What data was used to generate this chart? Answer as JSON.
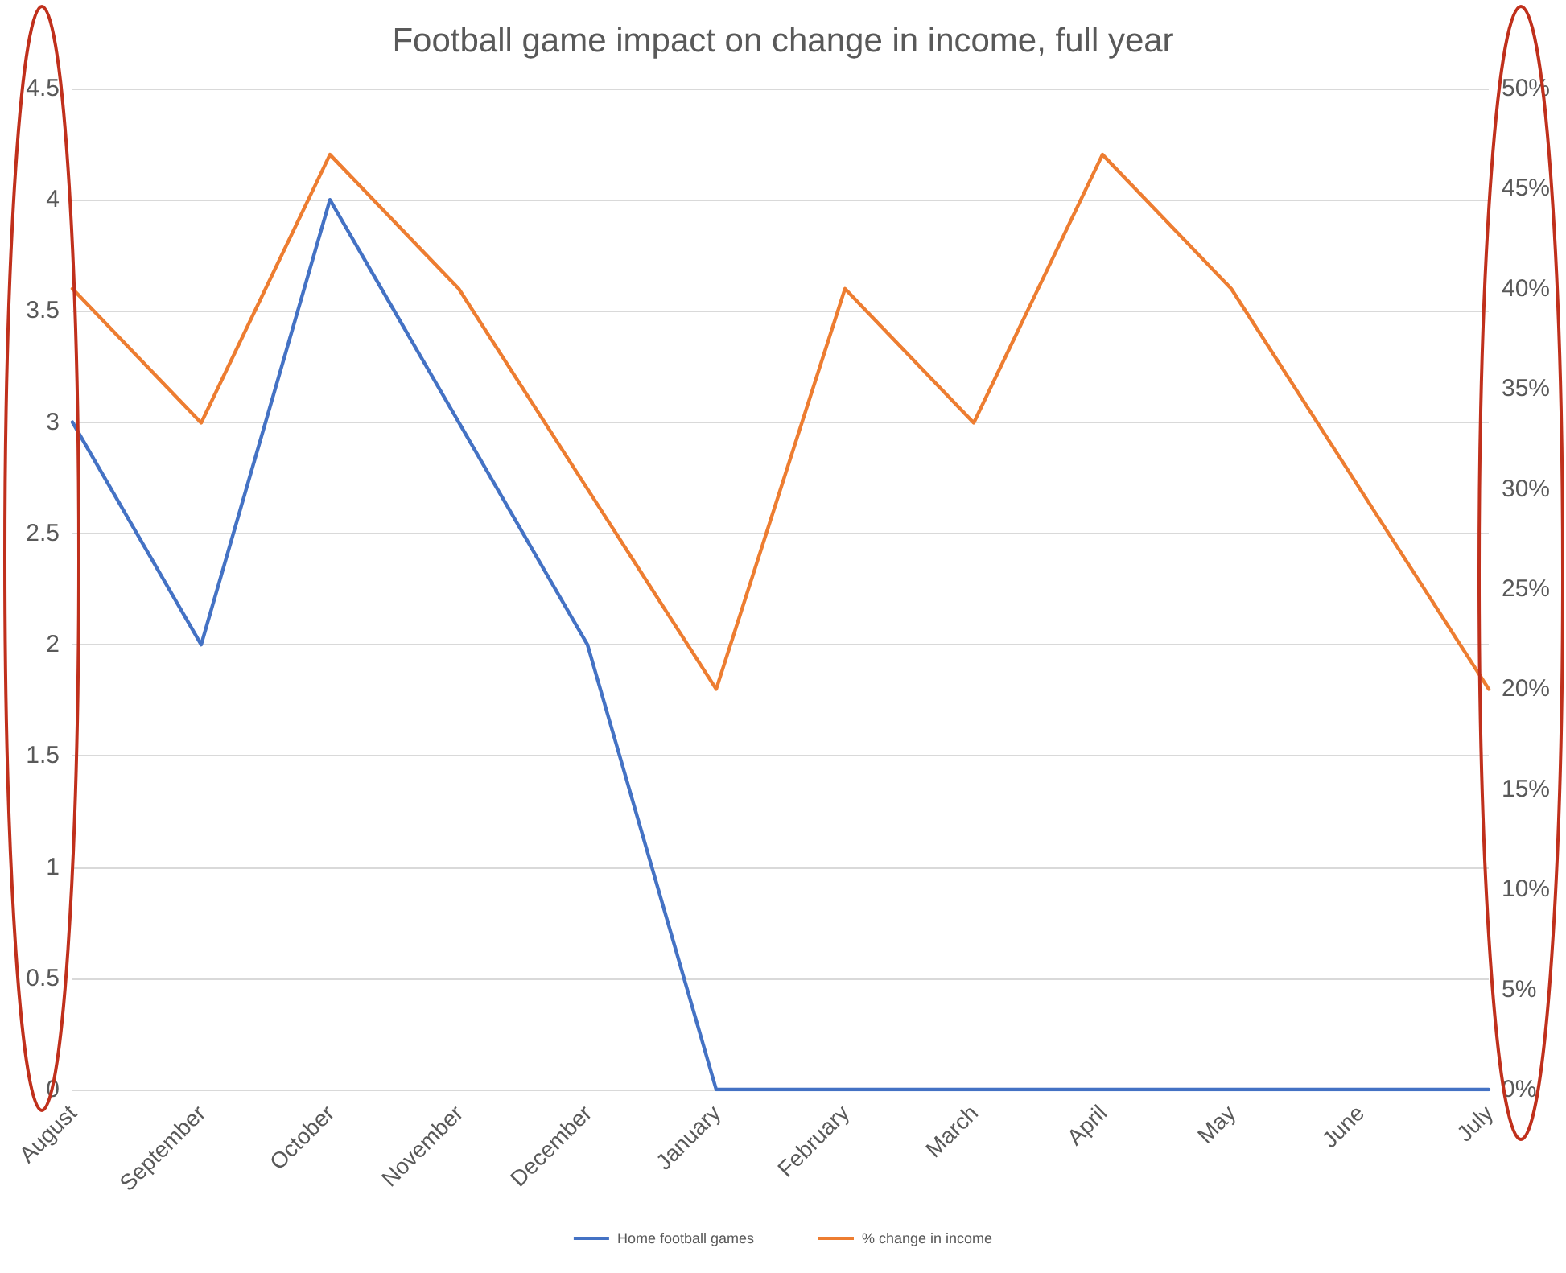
{
  "chart_data": {
    "type": "line",
    "title": "Football game impact on change in income, full year",
    "categories": [
      "August",
      "September",
      "October",
      "November",
      "December",
      "January",
      "February",
      "March",
      "April",
      "May",
      "June",
      "July"
    ],
    "series": [
      {
        "name": "Home football games",
        "color": "#4472c4",
        "values": [
          3,
          2,
          4,
          3,
          2,
          0,
          0,
          0,
          0,
          0,
          0,
          0
        ]
      },
      {
        "name": "% change in income",
        "color": "#ed7d31",
        "axis": "y2",
        "values": [
          40,
          33.3,
          46.7,
          40,
          30,
          20,
          40,
          33.3,
          46.7,
          40,
          30,
          20
        ]
      }
    ],
    "ylim": [
      0,
      4.5
    ],
    "yticks": [
      0,
      0.5,
      1,
      1.5,
      2,
      2.5,
      3,
      3.5,
      4,
      4.5
    ],
    "y2lim": [
      0,
      50
    ],
    "y2ticks": [
      {
        "value": 0,
        "label": "0%"
      },
      {
        "value": 5,
        "label": "5%"
      },
      {
        "value": 10,
        "label": "10%"
      },
      {
        "value": 15,
        "label": "15%"
      },
      {
        "value": 20,
        "label": "20%"
      },
      {
        "value": 25,
        "label": "25%"
      },
      {
        "value": 30,
        "label": "30%"
      },
      {
        "value": 35,
        "label": "35%"
      },
      {
        "value": 40,
        "label": "40%"
      },
      {
        "value": 45,
        "label": "45%"
      },
      {
        "value": 50,
        "label": "50%"
      }
    ],
    "grid": "y",
    "legend": "bottom",
    "marker": "none",
    "line_style": "solid"
  }
}
